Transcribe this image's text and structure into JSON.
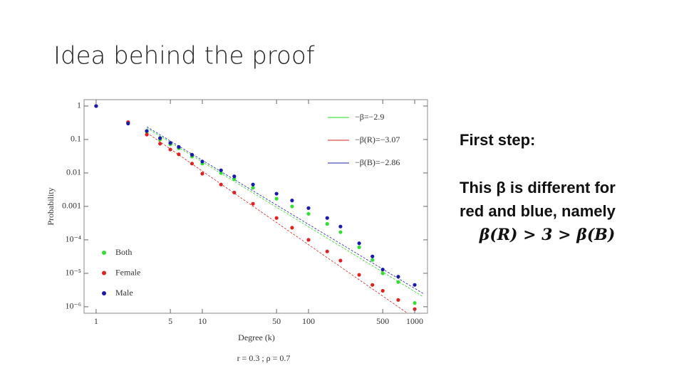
{
  "slide_title": "Idea behind the proof",
  "text_box": {
    "heading": "First step:",
    "lines": [
      "This β is different for",
      "red and blue, namely",
      "β(R) > 3 > β(B)"
    ]
  },
  "caption": "r = 0.3 ; ρ = 0.7",
  "chart_data": {
    "type": "scatter",
    "x_label": "Degree (k)",
    "y_label": "Probability",
    "x": [
      1,
      2,
      3,
      4,
      5,
      6,
      8,
      10,
      15,
      20,
      30,
      50,
      70,
      100,
      150,
      200,
      300,
      400,
      500,
      700,
      1000
    ],
    "series": [
      {
        "name": "Both",
        "color": "#33dd33",
        "values": [
          1,
          0.32,
          0.17,
          0.1,
          0.072,
          0.055,
          0.031,
          0.019,
          0.01,
          0.0065,
          0.0036,
          0.0017,
          0.001,
          0.0006,
          0.0003,
          0.00017,
          6e-05,
          2.5e-05,
          1e-05,
          5.5e-06,
          1.3e-06
        ]
      },
      {
        "name": "Female",
        "color": "#dd2222",
        "values": [
          1,
          0.33,
          0.14,
          0.075,
          0.05,
          0.036,
          0.019,
          0.0095,
          0.0045,
          0.0026,
          0.0012,
          0.00045,
          0.00023,
          0.0001,
          4.5e-05,
          2.4e-05,
          9e-06,
          4.5e-06,
          3e-06,
          1.6e-06,
          8.5e-07
        ]
      },
      {
        "name": "Male",
        "color": "#1a1aa8",
        "values": [
          1,
          0.3,
          0.18,
          0.11,
          0.079,
          0.06,
          0.035,
          0.022,
          0.012,
          0.0079,
          0.0045,
          0.0024,
          0.0015,
          0.00089,
          0.00045,
          0.00025,
          7.9e-05,
          3.2e-05,
          1.3e-05,
          7.9e-06,
          4.5e-06
        ]
      }
    ],
    "fits": [
      {
        "name": "−β=−2.9",
        "color": "#22dd22",
        "x": [
          3,
          1200
        ],
        "values": [
          0.22,
          2e-06
        ]
      },
      {
        "name": "−β(R)=−3.07",
        "color": "#dd2222",
        "x": [
          3,
          850
        ],
        "values": [
          0.16,
          6.5e-07
        ]
      },
      {
        "name": "−β(B)=−2.86",
        "color": "#2222aa",
        "x": [
          3,
          1200
        ],
        "values": [
          0.24,
          2.5e-06
        ]
      }
    ],
    "xlim": [
      0.77,
      1320
    ],
    "ylim": [
      6.4e-07,
      1.55
    ],
    "x_scale": "log",
    "y_scale": "log",
    "xticks": [
      1,
      5,
      10,
      50,
      100,
      500,
      1000
    ],
    "yticks": [
      1,
      0.1,
      0.01,
      0.001,
      {
        "value": 0.0001,
        "label": "10⁻⁴"
      },
      {
        "value": 1e-05,
        "label": "10⁻⁵"
      },
      {
        "value": 1e-06,
        "label": "10⁻⁶"
      }
    ],
    "legend": "lower left",
    "fit_legend": "upper right"
  }
}
